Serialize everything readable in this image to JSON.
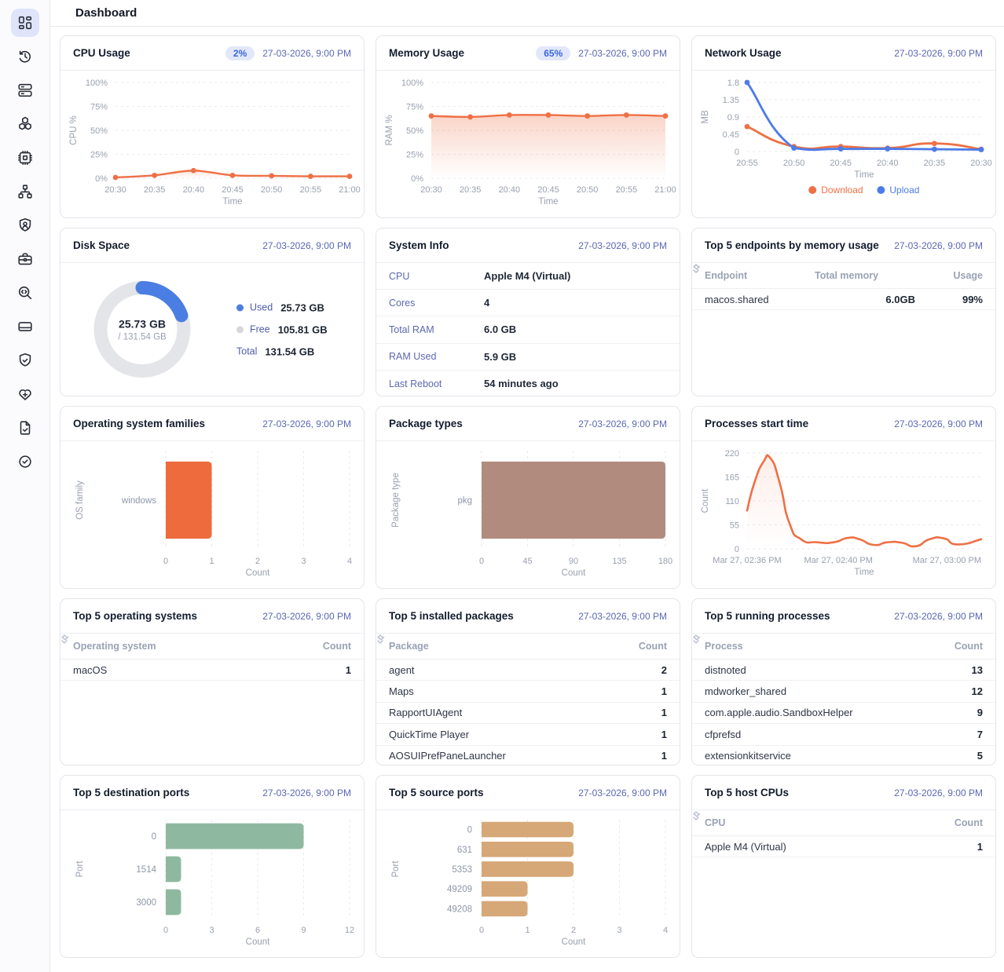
{
  "page": {
    "title": "Dashboard"
  },
  "timestamp": "27-03-2026, 9:00 PM",
  "sidebar": {
    "items": [
      {
        "name": "dashboard",
        "active": true
      },
      {
        "name": "history",
        "active": false
      },
      {
        "name": "servers",
        "active": false
      },
      {
        "name": "packages",
        "active": false
      },
      {
        "name": "cpu",
        "active": false
      },
      {
        "name": "network",
        "active": false
      },
      {
        "name": "user-shield",
        "active": false
      },
      {
        "name": "toolbox",
        "active": false
      },
      {
        "name": "code-search",
        "active": false
      },
      {
        "name": "storage-card",
        "active": false
      },
      {
        "name": "shield-check",
        "active": false
      },
      {
        "name": "health",
        "active": false
      },
      {
        "name": "file-check",
        "active": false
      },
      {
        "name": "badge-check",
        "active": false
      }
    ]
  },
  "cards": {
    "cpu_usage": {
      "title": "CPU Usage",
      "badge": "2%",
      "chart": {
        "type": "line",
        "smooth": 0.15,
        "lineWidth": 2.4,
        "categories": [
          "20:30",
          "20:35",
          "20:40",
          "20:45",
          "20:50",
          "20:55",
          "21:00"
        ],
        "series": [
          {
            "name": "CPU",
            "color": "#ee7045",
            "values": [
              0.8,
              3,
              8,
              3,
              2.5,
              2,
              2
            ],
            "fill": true,
            "fillOpacity": 0.18,
            "points": true
          }
        ],
        "ylim": [
          0,
          100
        ],
        "yticks": [
          0,
          25,
          50,
          75,
          100
        ],
        "ytick_labels": [
          "0%",
          "25%",
          "50%",
          "75%",
          "100%"
        ],
        "ylabel": "CPU %",
        "xlabel": "Time"
      }
    },
    "memory_usage": {
      "title": "Memory Usage",
      "badge": "65%",
      "chart": {
        "type": "line",
        "smooth": 0.15,
        "lineWidth": 2.4,
        "categories": [
          "20:30",
          "20:35",
          "20:40",
          "20:45",
          "20:50",
          "20:55",
          "21:00"
        ],
        "series": [
          {
            "name": "RAM",
            "color": "#ee7045",
            "values": [
              65,
              64,
              66,
              66,
              65,
              66,
              65
            ],
            "fill": true,
            "fillOpacity": 0.3,
            "points": true
          }
        ],
        "ylim": [
          0,
          100
        ],
        "yticks": [
          0,
          25,
          50,
          75,
          100
        ],
        "ytick_labels": [
          "0%",
          "25%",
          "50%",
          "75%",
          "100%"
        ],
        "ylabel": "RAM %",
        "xlabel": "Time"
      }
    },
    "network_usage": {
      "title": "Network Usage",
      "chart": {
        "type": "line",
        "smooth": 0.28,
        "lineWidth": 2.8,
        "legend": true,
        "categories": [
          "20:55",
          "20:50",
          "20:45",
          "20:40",
          "20:35",
          "20:30"
        ],
        "series": [
          {
            "name": "Download",
            "color": "#ee7045",
            "values": [
              0.65,
              0.13,
              0.13,
              0.09,
              0.21,
              0.06
            ],
            "points": true
          },
          {
            "name": "Upload",
            "color": "#4d7ce9",
            "values": [
              1.8,
              0.09,
              0.07,
              0.07,
              0.06,
              0.05
            ],
            "points": true
          }
        ],
        "ylim": [
          0,
          1.8
        ],
        "yticks": [
          0,
          0.45,
          0.9,
          1.35,
          1.8
        ],
        "ytick_labels": [
          "0",
          "0.45",
          "0.9",
          "1.35",
          "1.8"
        ],
        "ylabel": "MB",
        "xlabel": "Time"
      }
    },
    "disk_space": {
      "title": "Disk Space",
      "donut": {
        "used_gb": 25.73,
        "total_gb": 131.54,
        "center_value": "25.73 GB",
        "center_sub": "/ 131.54 GB",
        "used_label": "Used",
        "used_value": "25.73 GB",
        "free_label": "Free",
        "free_value": "105.81 GB",
        "total_label": "Total",
        "total_value": "131.54 GB",
        "used_color": "#4b7ee2",
        "track_color": "#e4e5e9",
        "free_dot_color": "#d5d7db"
      }
    },
    "system_info": {
      "title": "System Info",
      "rows": [
        {
          "label": "CPU",
          "value": "Apple M4 (Virtual)"
        },
        {
          "label": "Cores",
          "value": "4"
        },
        {
          "label": "Total RAM",
          "value": "6.0 GB"
        },
        {
          "label": "RAM Used",
          "value": "5.9 GB"
        },
        {
          "label": "Last Reboot",
          "value": "54 minutes ago"
        }
      ]
    },
    "top_endpoints": {
      "title": "Top 5 endpoints by memory usage",
      "columns": [
        {
          "label": "Endpoint",
          "sort": "both"
        },
        {
          "label": "Total memory",
          "sort": "both"
        },
        {
          "label": "Usage",
          "sort": "down"
        }
      ],
      "rows": [
        [
          "macos.shared",
          "6.0GB",
          "99%"
        ]
      ]
    },
    "os_families": {
      "title": "Operating system families",
      "chart": {
        "type": "hbar",
        "categories": [
          "windows"
        ],
        "values": [
          1
        ],
        "color": "#ed6b3d",
        "xlim": [
          0,
          4
        ],
        "xticks": [
          0,
          1,
          2,
          3,
          4
        ],
        "xlabel": "Count",
        "ylabel": "OS family"
      }
    },
    "package_types": {
      "title": "Package types",
      "chart": {
        "type": "hbar",
        "categories": [
          "pkg"
        ],
        "values": [
          180
        ],
        "color": "#b28b7f",
        "xlim": [
          0,
          180
        ],
        "xticks": [
          0,
          45,
          90,
          135,
          180
        ],
        "xlabel": "Count",
        "ylabel": "Package type"
      }
    },
    "processes_start": {
      "title": "Processes start time",
      "chart": {
        "type": "line",
        "smooth": 0.3,
        "lineWidth": 2.6,
        "x": [
          0,
          0.03,
          0.07,
          0.1,
          0.14,
          0.18,
          0.23,
          0.3,
          0.37,
          0.43,
          0.48,
          0.54,
          0.6,
          0.66,
          0.72,
          0.78,
          0.84,
          0.9,
          1.0
        ],
        "series": [
          {
            "name": "Count",
            "color": "#ee7045",
            "fill": true,
            "fillOpacity": 0.12,
            "points": false,
            "values": [
              88,
              150,
              200,
              208,
              150,
              60,
              22,
              15,
              15,
              25,
              22,
              9,
              15,
              14,
              6,
              22,
              24,
              10,
              22
            ]
          }
        ],
        "ylim": [
          0,
          220
        ],
        "yticks": [
          0,
          55,
          110,
          165,
          220
        ],
        "ytick_labels": [
          "0",
          "55",
          "110",
          "165",
          "220"
        ],
        "ylabel": "Count",
        "xlabel": "Time",
        "xticks": [
          {
            "pos": 0,
            "label": "Mar 27, 02:36 PM",
            "anchor": "middle"
          },
          {
            "pos": 0.39,
            "label": "Mar 27, 02:40 PM",
            "anchor": "middle"
          },
          {
            "pos": 1,
            "label": "Mar 27, 03:00 PM",
            "anchor": "end"
          }
        ]
      }
    },
    "top_os": {
      "title": "Top 5 operating systems",
      "columns": [
        {
          "label": "Operating system",
          "sort": "both"
        },
        {
          "label": "Count",
          "sort": "down"
        }
      ],
      "rows": [
        [
          "macOS",
          "1"
        ]
      ]
    },
    "top_packages": {
      "title": "Top 5 installed packages",
      "columns": [
        {
          "label": "Package",
          "sort": "both"
        },
        {
          "label": "Count",
          "sort": "down"
        }
      ],
      "rows": [
        [
          "agent",
          "2"
        ],
        [
          "Maps",
          "1"
        ],
        [
          "RapportUIAgent",
          "1"
        ],
        [
          "QuickTime Player",
          "1"
        ],
        [
          "AOSUIPrefPaneLauncher",
          "1"
        ]
      ]
    },
    "top_processes": {
      "title": "Top 5 running processes",
      "columns": [
        {
          "label": "Process",
          "sort": "both"
        },
        {
          "label": "Count",
          "sort": "down"
        }
      ],
      "rows": [
        [
          "distnoted",
          "13"
        ],
        [
          "mdworker_shared",
          "12"
        ],
        [
          "com.apple.audio.SandboxHelper",
          "9"
        ],
        [
          "cfprefsd",
          "7"
        ],
        [
          "extensionkitservice",
          "5"
        ]
      ]
    },
    "dest_ports": {
      "title": "Top 5 destination ports",
      "chart": {
        "type": "hbar",
        "categories": [
          "0",
          "1514",
          "3000"
        ],
        "values": [
          9,
          1,
          1
        ],
        "color": "#8eb9a0",
        "xlim": [
          0,
          12
        ],
        "xticks": [
          0,
          3,
          6,
          9,
          12
        ],
        "xlabel": "Count",
        "ylabel": "Port"
      }
    },
    "source_ports": {
      "title": "Top 5 source ports",
      "chart": {
        "type": "hbar",
        "categories": [
          "0",
          "631",
          "5353",
          "49209",
          "49208"
        ],
        "values": [
          2,
          2,
          2,
          1,
          1
        ],
        "color": "#d6a877",
        "xlim": [
          0,
          4
        ],
        "xticks": [
          0,
          1,
          2,
          3,
          4
        ],
        "xlabel": "Count",
        "ylabel": "Port"
      }
    },
    "top_cpus": {
      "title": "Top 5 host CPUs",
      "columns": [
        {
          "label": "CPU",
          "sort": "both"
        },
        {
          "label": "Count",
          "sort": "down"
        }
      ],
      "rows": [
        [
          "Apple M4 (Virtual)",
          "1"
        ]
      ]
    }
  }
}
